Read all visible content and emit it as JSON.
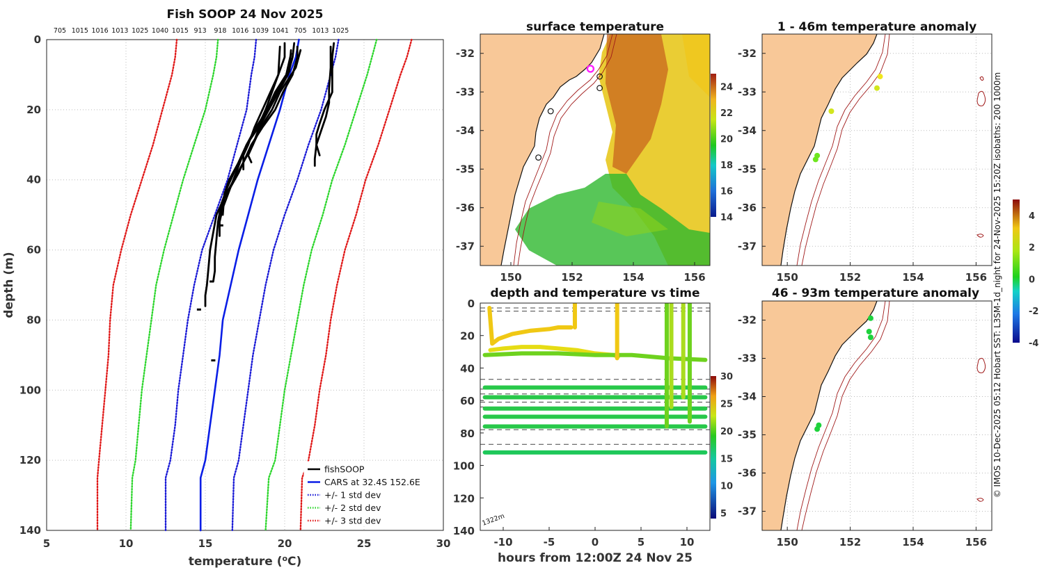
{
  "figure": {
    "side_note": "© IMOS 10-Dec-2025 05:12 Hobart SST: L3SM-1d_night for 24-Nov-2025 15:20Z isobaths: 200  1000m",
    "isobath_label": "1322m"
  },
  "colors": {
    "fishsoop": "#000000",
    "cars": "#0a1ee6",
    "std1": "#1a1ad6",
    "std2": "#2ed62e",
    "std3": "#e01a1a",
    "land": "#f8c898",
    "isobath": "#a01a1a",
    "track_marker": "#ff20ff"
  },
  "chart_data": [
    {
      "id": "profile",
      "type": "line",
      "title": "Fish SOOP 24 Nov 2025",
      "xlabel": "temperature (oC)",
      "ylabel": "depth (m)",
      "xlim": [
        5,
        30
      ],
      "ylim": [
        0,
        140
      ],
      "xticks": [
        5,
        10,
        15,
        20,
        25,
        30
      ],
      "yticks": [
        0,
        20,
        40,
        60,
        80,
        100,
        120,
        140
      ],
      "top_labels": [
        "705",
        "1015",
        "1016",
        "1013",
        "1025",
        "1040",
        "1015",
        "913",
        "918",
        "1016",
        "1039",
        "1041",
        "705",
        "1013",
        "1025"
      ],
      "legend": [
        {
          "label": "fishSOOP",
          "style": "solid",
          "color_key": "fishsoop"
        },
        {
          "label": "CARS at 32.4S 152.6E",
          "style": "solid",
          "color_key": "cars"
        },
        {
          "label": "+/- 1 std dev",
          "style": "dotted",
          "color_key": "std1"
        },
        {
          "label": "+/- 2 std dev",
          "style": "dotted",
          "color_key": "std2"
        },
        {
          "label": "+/- 3 std dev",
          "style": "dotted",
          "color_key": "std3"
        }
      ],
      "series": [
        {
          "name": "CARS",
          "depth": [
            0,
            5,
            10,
            20,
            30,
            40,
            50,
            60,
            70,
            80,
            90,
            100,
            110,
            120,
            125,
            140
          ],
          "temp": [
            20.9,
            20.7,
            20.3,
            19.7,
            19.0,
            18.3,
            17.7,
            17.1,
            16.6,
            16.1,
            15.9,
            15.6,
            15.3,
            15.0,
            14.7,
            14.7
          ]
        },
        {
          "name": "-1 std",
          "depth": [
            0,
            5,
            10,
            20,
            30,
            40,
            50,
            60,
            70,
            80,
            90,
            100,
            110,
            120,
            125,
            140
          ],
          "temp": [
            18.2,
            18.1,
            17.9,
            17.6,
            17.0,
            16.4,
            15.6,
            14.8,
            14.3,
            13.9,
            13.6,
            13.3,
            13.1,
            12.8,
            12.5,
            12.5
          ]
        },
        {
          "name": "+1 std",
          "depth": [
            0,
            5,
            10,
            20,
            30,
            40,
            50,
            60,
            70,
            80,
            90,
            100,
            110,
            120,
            125,
            140
          ],
          "temp": [
            23.4,
            23.2,
            22.9,
            22.3,
            21.5,
            20.8,
            20.0,
            19.3,
            18.8,
            18.4,
            18.0,
            17.7,
            17.4,
            17.1,
            16.8,
            16.7
          ]
        },
        {
          "name": "-2 std",
          "depth": [
            0,
            5,
            10,
            20,
            30,
            40,
            50,
            60,
            70,
            80,
            90,
            100,
            110,
            120,
            125,
            140
          ],
          "temp": [
            15.8,
            15.7,
            15.5,
            15.0,
            14.3,
            13.6,
            13.0,
            12.4,
            11.9,
            11.6,
            11.3,
            11.0,
            10.8,
            10.6,
            10.4,
            10.3
          ]
        },
        {
          "name": "+2 std",
          "depth": [
            0,
            5,
            10,
            20,
            30,
            40,
            50,
            60,
            70,
            80,
            90,
            100,
            110,
            120,
            125,
            140
          ],
          "temp": [
            25.8,
            25.5,
            25.2,
            24.5,
            23.8,
            23.0,
            22.4,
            21.7,
            21.2,
            20.8,
            20.4,
            20.0,
            19.7,
            19.4,
            19.0,
            18.8
          ]
        },
        {
          "name": "-3 std",
          "depth": [
            0,
            5,
            10,
            20,
            30,
            40,
            50,
            60,
            70,
            80,
            90,
            100,
            110,
            120,
            125,
            140
          ],
          "temp": [
            13.2,
            13.1,
            12.9,
            12.3,
            11.7,
            11.0,
            10.3,
            9.7,
            9.2,
            9.0,
            8.9,
            8.7,
            8.5,
            8.3,
            8.2,
            8.2
          ]
        },
        {
          "name": "+3 std",
          "depth": [
            0,
            5,
            10,
            20,
            30,
            40,
            50,
            60,
            70,
            80,
            90,
            100,
            110,
            120,
            125,
            140
          ],
          "temp": [
            28.0,
            27.7,
            27.3,
            26.6,
            25.9,
            25.1,
            24.5,
            23.8,
            23.3,
            22.9,
            22.6,
            22.2,
            21.9,
            21.5,
            21.1,
            21.0
          ]
        },
        {
          "name": "fishSOOP cast A",
          "depth": [
            1,
            5,
            10,
            15,
            20,
            25,
            30,
            33,
            35
          ],
          "temp": [
            20.6,
            20.5,
            20.2,
            19.6,
            19.0,
            18.4,
            18.0,
            17.7,
            17.9
          ]
        },
        {
          "name": "fishSOOP cast B",
          "depth": [
            1,
            5,
            10,
            15,
            20,
            25,
            30,
            33,
            37
          ],
          "temp": [
            20.0,
            20.0,
            19.6,
            19.1,
            18.6,
            18.1,
            17.7,
            17.4,
            17.4
          ]
        },
        {
          "name": "fishSOOP cast C",
          "depth": [
            2,
            5,
            10,
            15,
            20,
            25,
            30,
            34,
            38,
            42,
            46,
            50
          ],
          "temp": [
            20.8,
            20.8,
            20.5,
            19.9,
            19.4,
            18.6,
            17.9,
            17.5,
            17.1,
            16.6,
            16.1,
            16.0
          ]
        },
        {
          "name": "fishSOOP cast D",
          "depth": [
            3,
            8,
            15,
            20,
            25,
            30,
            35,
            40,
            45,
            50,
            55,
            60,
            65,
            70,
            73,
            76
          ],
          "temp": [
            21.0,
            20.7,
            19.7,
            19.2,
            18.5,
            18.0,
            17.4,
            16.8,
            16.2,
            15.7,
            15.5,
            15.3,
            15.2,
            15.1,
            15.0,
            15.0
          ]
        },
        {
          "name": "fishSOOP cast E",
          "depth": [
            4,
            10,
            15,
            20,
            25,
            30,
            36,
            42,
            47,
            52,
            57,
            62,
            66,
            69
          ],
          "temp": [
            20.4,
            20.1,
            19.4,
            18.9,
            18.2,
            17.6,
            17.0,
            16.4,
            16.0,
            15.8,
            15.7,
            15.6,
            15.6,
            15.5
          ]
        },
        {
          "name": "fishSOOP cast F",
          "depth": [
            2,
            10,
            20,
            26,
            30,
            36,
            42,
            48,
            52,
            56
          ],
          "temp": [
            19.7,
            19.6,
            18.8,
            18.2,
            17.6,
            17.1,
            16.6,
            16.1,
            15.9,
            15.9
          ]
        },
        {
          "name": "fishSOOP cast G",
          "depth": [
            3,
            9,
            15,
            20,
            25,
            30,
            35,
            40,
            44,
            50
          ],
          "temp": [
            20.4,
            20.3,
            19.5,
            19.0,
            18.3,
            17.6,
            17.1,
            16.5,
            16.2,
            16.1
          ]
        },
        {
          "name": "fishSOOP cast H",
          "depth": [
            1,
            5,
            10,
            15,
            20,
            24,
            27,
            30,
            33
          ],
          "temp": [
            23.1,
            23.0,
            23.0,
            23.0,
            22.5,
            22.2,
            22.0,
            22.0,
            22.2
          ]
        },
        {
          "name": "fishSOOP cast I",
          "depth": [
            2,
            8,
            14,
            18,
            22,
            26,
            30,
            34,
            36
          ],
          "temp": [
            22.9,
            22.9,
            22.8,
            22.8,
            22.6,
            22.3,
            22.0,
            21.9,
            21.9
          ]
        }
      ]
    },
    {
      "id": "sst_map",
      "type": "heatmap",
      "title": "surface temperature",
      "xlim": [
        149,
        156.5
      ],
      "ylim": [
        -37.5,
        -31.5
      ],
      "xticks": [
        150,
        152,
        154,
        156
      ],
      "yticks": [
        -32,
        -33,
        -34,
        -35,
        -36,
        -37
      ],
      "colorbar": {
        "min": 14,
        "max": 25,
        "ticks": [
          14,
          16,
          18,
          20,
          22,
          24
        ]
      },
      "markers": [
        {
          "lon": 152.6,
          "lat": -32.4,
          "kind": "ring"
        },
        {
          "lon": 152.9,
          "lat": -32.6,
          "kind": "dot"
        },
        {
          "lon": 152.9,
          "lat": -32.9,
          "kind": "dot"
        },
        {
          "lon": 151.3,
          "lat": -33.5,
          "kind": "dot"
        },
        {
          "lon": 150.9,
          "lat": -34.7,
          "kind": "dot"
        }
      ]
    },
    {
      "id": "anom_upper",
      "type": "scatter",
      "title": "1 - 46m temperature anomaly",
      "xlim": [
        149.2,
        156.5
      ],
      "ylim": [
        -37.5,
        -31.5
      ],
      "xticks": [
        150,
        152,
        154,
        156
      ],
      "yticks": [
        -32,
        -33,
        -34,
        -35,
        -36,
        -37
      ],
      "points": [
        {
          "lon": 152.95,
          "lat": -32.6,
          "anom": 2.6
        },
        {
          "lon": 152.85,
          "lat": -32.9,
          "anom": 2.3
        },
        {
          "lon": 151.4,
          "lat": -33.5,
          "anom": 1.8
        },
        {
          "lon": 150.95,
          "lat": -34.65,
          "anom": 0.8
        },
        {
          "lon": 150.9,
          "lat": -34.75,
          "anom": 0.6
        }
      ]
    },
    {
      "id": "anom_lower",
      "type": "scatter",
      "title": "46 - 93m temperature anomaly",
      "xlim": [
        149.2,
        156.5
      ],
      "ylim": [
        -37.5,
        -31.5
      ],
      "xticks": [
        150,
        152,
        154,
        156
      ],
      "yticks": [
        -32,
        -33,
        -34,
        -35,
        -36,
        -37
      ],
      "points": [
        {
          "lon": 152.65,
          "lat": -31.95,
          "anom": 0.3
        },
        {
          "lon": 152.6,
          "lat": -32.3,
          "anom": 0.4
        },
        {
          "lon": 152.65,
          "lat": -32.45,
          "anom": 0.2
        },
        {
          "lon": 151.0,
          "lat": -34.75,
          "anom": 0.3
        },
        {
          "lon": 150.95,
          "lat": -34.85,
          "anom": 0.1
        }
      ],
      "colorbar": {
        "min": -4,
        "max": 5,
        "ticks": [
          -4,
          -2,
          0,
          2,
          4
        ]
      }
    },
    {
      "id": "depth_time",
      "type": "scatter",
      "title": "depth and temperature vs time",
      "xlabel": "hours from 12:00Z 24 Nov 25",
      "xlim": [
        -12.5,
        12.5
      ],
      "ylim": [
        0,
        140
      ],
      "xticks": [
        -10,
        -5,
        0,
        5,
        10
      ],
      "yticks": [
        0,
        20,
        40,
        60,
        80,
        100,
        120,
        140
      ],
      "colorbar": {
        "min": 4,
        "max": 30,
        "ticks": [
          5,
          10,
          15,
          20,
          25,
          30
        ]
      },
      "reference_depths": [
        3,
        5,
        47,
        53,
        56,
        61,
        64,
        78,
        87
      ],
      "segments": [
        {
          "t": [
            -11.5,
            -11.2,
            -10.5,
            -9.0,
            -7.0,
            -5.0,
            -4.0,
            -2.6
          ],
          "depth": [
            3,
            25,
            22,
            19,
            17,
            16,
            15,
            15
          ],
          "temp": 24
        },
        {
          "t": [
            -11.4,
            -10.0,
            -8.0,
            -6.0,
            -4.0,
            -2.0,
            0.0,
            2.0,
            2.5
          ],
          "depth": [
            29,
            28,
            27,
            27,
            28,
            29,
            31,
            32,
            33
          ],
          "temp": 23
        },
        {
          "t": [
            -12.0,
            -8.0,
            -4.0,
            0.0,
            4.0,
            8.0,
            12.0
          ],
          "depth": [
            32,
            31,
            31,
            32,
            32,
            34,
            35
          ],
          "temp": 19
        },
        {
          "t": [
            -12.0,
            0.0,
            12.0
          ],
          "depth": [
            52,
            52,
            52
          ],
          "temp": 17
        },
        {
          "t": [
            -12.0,
            0.0,
            12.0
          ],
          "depth": [
            58,
            58,
            58
          ],
          "temp": 17
        },
        {
          "t": [
            -12.0,
            0.0,
            12.0
          ],
          "depth": [
            65,
            65,
            65
          ],
          "temp": 17
        },
        {
          "t": [
            -12.0,
            0.0,
            12.0
          ],
          "depth": [
            70,
            70,
            70
          ],
          "temp": 17
        },
        {
          "t": [
            -12.0,
            0.0,
            12.0
          ],
          "depth": [
            76,
            76,
            76
          ],
          "temp": 17
        },
        {
          "t": [
            -12.0,
            0.0,
            12.0
          ],
          "depth": [
            92,
            92,
            92
          ],
          "temp": 16
        }
      ],
      "vertical_casts": [
        {
          "t": -2.2,
          "from": 0,
          "to": 15,
          "temp": 24
        },
        {
          "t": 2.4,
          "from": 0,
          "to": 34,
          "temp": 24
        },
        {
          "t": 7.8,
          "from": 0,
          "to": 76,
          "temp": 19
        },
        {
          "t": 8.3,
          "from": 0,
          "to": 64,
          "temp": 20
        },
        {
          "t": 9.6,
          "from": 0,
          "to": 58,
          "temp": 21
        },
        {
          "t": 10.3,
          "from": 0,
          "to": 73,
          "temp": 19
        }
      ]
    }
  ]
}
